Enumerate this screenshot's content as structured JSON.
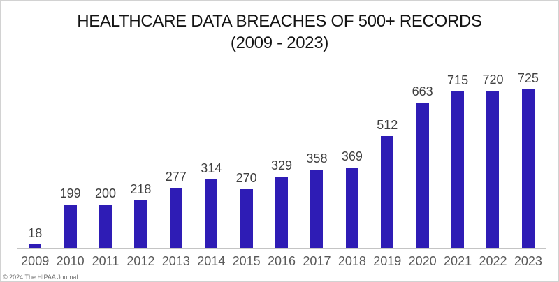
{
  "chart_data": {
    "type": "bar",
    "title_line1": "HEALTHCARE DATA BREACHES OF 500+ RECORDS",
    "title_line2": "(2009 - 2023)",
    "categories": [
      "2009",
      "2010",
      "2011",
      "2012",
      "2013",
      "2014",
      "2015",
      "2016",
      "2017",
      "2018",
      "2019",
      "2020",
      "2021",
      "2022",
      "2023"
    ],
    "values": [
      18,
      199,
      200,
      218,
      277,
      314,
      270,
      329,
      358,
      369,
      512,
      663,
      715,
      720,
      725
    ],
    "xlabel": "",
    "ylabel": "",
    "ylim": [
      0,
      740
    ],
    "grid": false,
    "legend": false,
    "data_labels": true,
    "colors": {
      "bar": "#2e1cb5",
      "value_label": "#3f3f3f",
      "year_label": "#595959",
      "axis_line": "#c4c4c4",
      "title": "#141414"
    }
  },
  "footer": {
    "copyright": "© 2024 The HIPAA Journal"
  }
}
